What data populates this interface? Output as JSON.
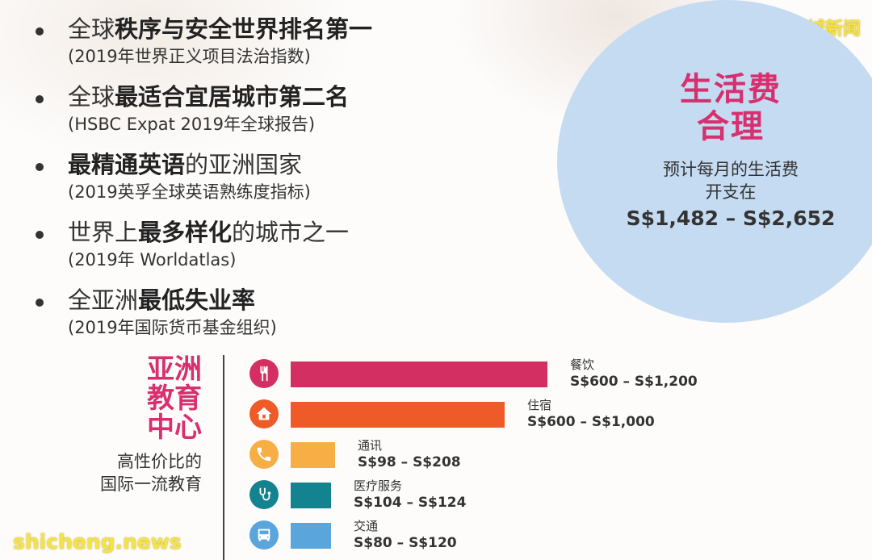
{
  "watermarks": {
    "top": "狮城新闻",
    "bottom": "shicheng.news"
  },
  "rankings": [
    {
      "prefix": "全球",
      "bold": "秩序与安全世界排名第一",
      "suffix": "",
      "source": "(2019年世界正义项目法治指数)"
    },
    {
      "prefix": "全球",
      "bold": "最适合宜居城市第二名",
      "suffix": "",
      "source": "(HSBC Expat 2019年全球报告)"
    },
    {
      "prefix": "",
      "bold": "最精通英语",
      "suffix": "的亚洲国家",
      "source": "(2019英孚全球英语熟练度指标)"
    },
    {
      "prefix": "世界上",
      "bold": "最多样化",
      "suffix": "的城市之一",
      "source": "(2019年 Worldatlas)"
    },
    {
      "prefix": "全亚洲",
      "bold": "最低失业率",
      "suffix": "",
      "source": "(2019年国际货币基金组织)"
    }
  ],
  "cost_of_living": {
    "title_line1": "生活费",
    "title_line2": "合理",
    "desc_line1": "预计每月的生活费",
    "desc_line2": "开支在",
    "range": "S$1,482 – S$2,652"
  },
  "education": {
    "title_line1": "亚洲",
    "title_line2": "教育",
    "title_line3": "中心",
    "sub_line1": "高性价比的",
    "sub_line2": "国际一流教育"
  },
  "expenses": [
    {
      "label": "餐饮",
      "range": "S$600 – S$1,200",
      "min": 600,
      "max": 1200,
      "color": "#d32f63",
      "icon_color": "#d32f63",
      "icon": "fork-knife-icon"
    },
    {
      "label": "住宿",
      "range": "S$600 – S$1,000",
      "min": 600,
      "max": 1000,
      "color": "#ee5a28",
      "icon_color": "#ee5a28",
      "icon": "house-icon"
    },
    {
      "label": "通讯",
      "range": "S$98 – S$208",
      "min": 98,
      "max": 208,
      "color": "#f6ae45",
      "icon_color": "#f6ae45",
      "icon": "phone-icon"
    },
    {
      "label": "医疗服务",
      "range": "S$104 – S$124",
      "min": 104,
      "max": 124,
      "color": "#13838f",
      "icon_color": "#13838f",
      "icon": "stethoscope-icon"
    },
    {
      "label": "交通",
      "range": "S$80 – S$120",
      "min": 80,
      "max": 120,
      "color": "#5aa5dc",
      "icon_color": "#5aa5dc",
      "icon": "bus-icon"
    }
  ]
}
